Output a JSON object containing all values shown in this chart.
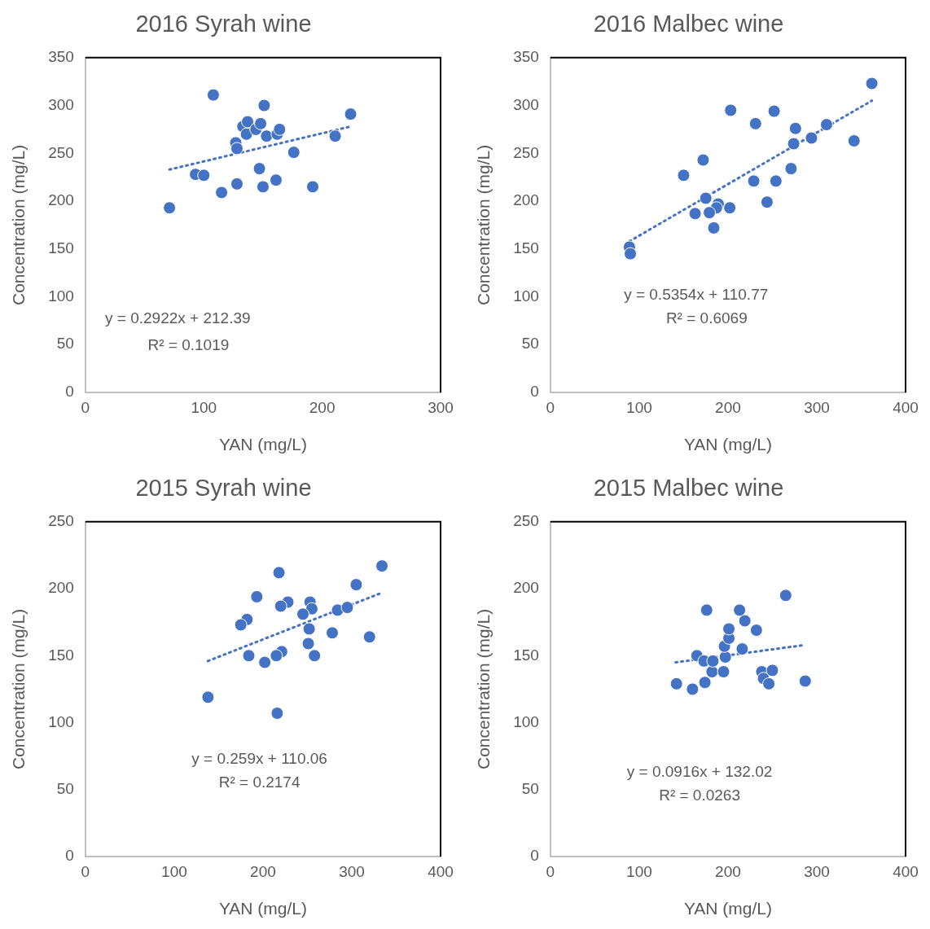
{
  "chart_data": [
    {
      "type": "scatter",
      "title": "2016 Syrah wine",
      "xlabel": "YAN (mg/L)",
      "ylabel": "Concentration (mg/L)",
      "xlim": [
        0,
        300
      ],
      "xticks": [
        0,
        100,
        200,
        300
      ],
      "ylim": [
        0,
        350
      ],
      "yticks": [
        0,
        50,
        100,
        150,
        200,
        250,
        300,
        350
      ],
      "annotations": [
        "y = 0.2922x + 212.39",
        "R² = 0.1019"
      ],
      "series": [
        {
          "marker": "circle",
          "color": "#4472c4",
          "x": [
            71,
            108,
            93,
            100,
            115,
            127,
            128,
            128,
            133,
            136,
            137,
            144,
            148,
            147,
            151,
            150,
            153,
            161,
            162,
            164,
            176,
            192,
            211,
            224
          ],
          "values": [
            193,
            311,
            228,
            227,
            209,
            261,
            255,
            218,
            278,
            270,
            283,
            275,
            281,
            234,
            300,
            215,
            268,
            222,
            270,
            275,
            251,
            215,
            268,
            291
          ]
        },
        {
          "type": "line",
          "marker": "none",
          "color": "#4472c4",
          "line_style": "dotted",
          "x": [
            71,
            224
          ],
          "values": [
            233,
            278
          ]
        }
      ]
    },
    {
      "type": "scatter",
      "title": "2016 Malbec wine",
      "xlabel": "YAN (mg/L)",
      "ylabel": "Concentration (mg/L)",
      "xlim": [
        0,
        400
      ],
      "xticks": [
        0,
        100,
        200,
        300,
        400
      ],
      "ylim": [
        0,
        350
      ],
      "yticks": [
        0,
        50,
        100,
        150,
        200,
        250,
        300,
        350
      ],
      "annotations": [
        "y = 0.5354x + 110.77",
        "R² = 0.6069"
      ],
      "series": [
        {
          "marker": "circle",
          "color": "#4472c4",
          "x": [
            362,
            203,
            252,
            231,
            276,
            311,
            294,
            274,
            342,
            172,
            150,
            229,
            254,
            271,
            244,
            175,
            189,
            187,
            179,
            163,
            202,
            184,
            89,
            90
          ],
          "values": [
            323,
            295,
            294,
            281,
            276,
            280,
            266,
            260,
            263,
            243,
            227,
            221,
            221,
            234,
            199,
            203,
            197,
            193,
            188,
            187,
            193,
            172,
            152,
            145
          ]
        },
        {
          "type": "line",
          "marker": "none",
          "color": "#4472c4",
          "line_style": "dotted",
          "x": [
            89,
            362
          ],
          "values": [
            158,
            305
          ]
        }
      ]
    },
    {
      "type": "scatter",
      "title": "2015 Syrah wine",
      "xlabel": "YAN (mg/L)",
      "ylabel": "Concentration (mg/L)",
      "xlim": [
        0,
        400
      ],
      "xticks": [
        0,
        100,
        200,
        300,
        400
      ],
      "ylim": [
        0,
        250
      ],
      "yticks": [
        0,
        50,
        100,
        150,
        200,
        250
      ],
      "annotations": [
        "y = 0.259x + 110.06",
        "R² = 0.2174"
      ],
      "series": [
        {
          "marker": "circle",
          "color": "#4472c4",
          "x": [
            334,
            218,
            305,
            193,
            228,
            220,
            253,
            255,
            245,
            284,
            295,
            182,
            175,
            252,
            278,
            320,
            251,
            184,
            221,
            215,
            202,
            258,
            138,
            216
          ],
          "values": [
            217,
            212,
            203,
            194,
            190,
            187,
            190,
            185,
            181,
            184,
            186,
            177,
            173,
            170,
            167,
            164,
            159,
            150,
            153,
            150,
            145,
            150,
            119,
            107
          ]
        },
        {
          "type": "line",
          "marker": "none",
          "color": "#4472c4",
          "line_style": "dotted",
          "x": [
            138,
            334
          ],
          "values": [
            146,
            197
          ]
        }
      ]
    },
    {
      "type": "scatter",
      "title": "2015 Malbec wine",
      "xlabel": "YAN (mg/L)",
      "ylabel": "Concentration (mg/L)",
      "xlim": [
        0,
        400
      ],
      "xticks": [
        0,
        100,
        200,
        300,
        400
      ],
      "ylim": [
        0,
        250
      ],
      "yticks": [
        0,
        50,
        100,
        150,
        200,
        250
      ],
      "annotations": [
        "y = 0.0916x + 132.02",
        "R² = 0.0263"
      ],
      "series": [
        {
          "marker": "circle",
          "color": "#4472c4",
          "x": [
            142,
            160,
            165,
            173,
            176,
            174,
            182,
            183,
            195,
            197,
            196,
            201,
            201,
            213,
            219,
            216,
            232,
            238,
            240,
            246,
            250,
            265,
            287
          ],
          "values": [
            129,
            125,
            150,
            146,
            184,
            130,
            138,
            146,
            138,
            149,
            157,
            163,
            170,
            184,
            176,
            155,
            169,
            138,
            133,
            129,
            139,
            195,
            131
          ]
        },
        {
          "type": "line",
          "marker": "none",
          "color": "#4472c4",
          "line_style": "dotted",
          "x": [
            141,
            287
          ],
          "values": [
            145,
            158
          ]
        }
      ]
    }
  ]
}
